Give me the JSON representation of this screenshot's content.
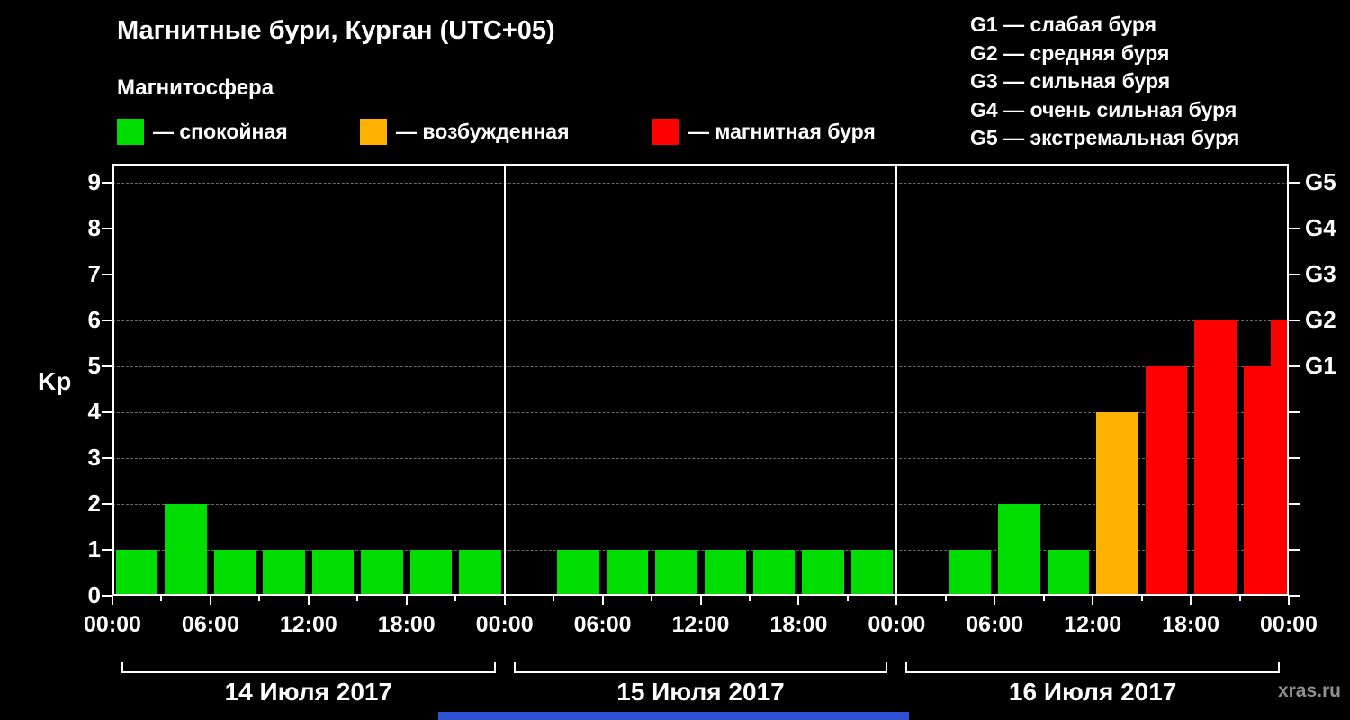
{
  "header": {
    "title": "Магнитные бури, Курган (UTC+05)",
    "subtitle": "Магнитосфера"
  },
  "legend": {
    "items": [
      {
        "name": "quiet",
        "label": "— спокойная",
        "color": "#00dd00"
      },
      {
        "name": "excited",
        "label": "— возбужденная",
        "color": "#ffb000"
      },
      {
        "name": "storm",
        "label": "— магнитная буря",
        "color": "#ff0000"
      }
    ]
  },
  "storm_scale": [
    "G1 — слабая буря",
    "G2 — средняя буря",
    "G3 — сильная буря",
    "G4 — очень сильная буря",
    "G5 — экстремальная буря"
  ],
  "footer": {
    "watermark": "xras.ru"
  },
  "chart_data": {
    "type": "bar",
    "title": "Магнитные бури, Курган (UTC+05)",
    "ylabel": "Kp",
    "ylim": [
      0,
      9
    ],
    "y_ticks": [
      0,
      1,
      2,
      3,
      4,
      5,
      6,
      7,
      8,
      9
    ],
    "grid": "dashed horizontal line at each Kp level",
    "legend_position": "top",
    "time_ticks": [
      "00:00",
      "06:00",
      "12:00",
      "18:00"
    ],
    "closing_tick": "00:00",
    "slot_start_hours": [
      0,
      3,
      6,
      9,
      12,
      15,
      18,
      21
    ],
    "right_axis": [
      {
        "label": "G1",
        "kp": 5
      },
      {
        "label": "G2",
        "kp": 6
      },
      {
        "label": "G3",
        "kp": 7
      },
      {
        "label": "G4",
        "kp": 8
      },
      {
        "label": "G5",
        "kp": 9
      }
    ],
    "color_rules": {
      "kp_0_3": "#00dd00",
      "kp_4": "#ffb000",
      "kp_5_9": "#ff0000"
    },
    "days": [
      {
        "date": "14 Июля 2017",
        "kp_3h": [
          1,
          2,
          1,
          1,
          1,
          1,
          1,
          1
        ]
      },
      {
        "date": "15 Июля 2017",
        "kp_3h": [
          null,
          1,
          1,
          1,
          1,
          1,
          1,
          1
        ]
      },
      {
        "date": "16 Июля 2017",
        "kp_3h": [
          null,
          1,
          2,
          1,
          4,
          5,
          6,
          5
        ],
        "trailing_partial_kp": 6
      }
    ]
  }
}
